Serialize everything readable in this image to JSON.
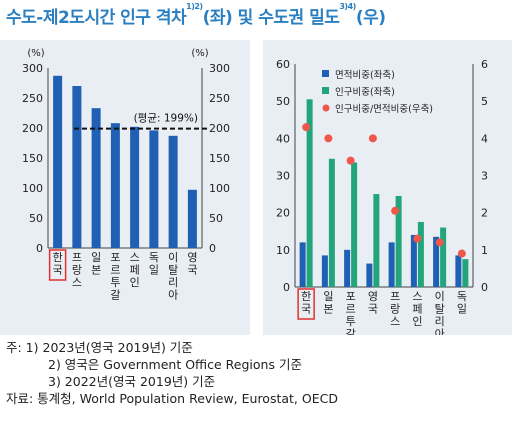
{
  "title": {
    "part1": "수도-제2도시간 인구 격차",
    "sup1": "1)2)",
    "part2": "(좌) 및 수도권 밀도",
    "sup2": "3)4)",
    "part3": "(우)"
  },
  "chart_data": [
    {
      "type": "bar",
      "categories": [
        "한국",
        "프랑스",
        "일본",
        "포르투갈",
        "스페인",
        "독일",
        "이탈리아",
        "영국"
      ],
      "values": [
        287,
        270,
        233,
        208,
        202,
        196,
        187,
        97
      ],
      "highlight_category": "한국",
      "bar_color": "#1f5fb4",
      "ylim": [
        0,
        300
      ],
      "yticks": [
        0,
        50,
        100,
        150,
        200,
        250,
        300
      ],
      "left_unit": "(%)",
      "right_unit": "(%)",
      "reference_line": {
        "value": 199,
        "label": "(평균: 199%)"
      },
      "grid": false
    },
    {
      "type": "bar",
      "categories": [
        "한국",
        "일본",
        "포르투갈",
        "영국",
        "프랑스",
        "스페인",
        "이탈리아",
        "독일"
      ],
      "highlight_category": "한국",
      "series": [
        {
          "name": "면적비중(좌축)",
          "axis": "left",
          "color": "#1f5fb4",
          "values": [
            12,
            8.5,
            10,
            6.3,
            12,
            14,
            13.5,
            8.5
          ]
        },
        {
          "name": "인구비중(좌축)",
          "axis": "left",
          "color": "#22a57a",
          "values": [
            50.5,
            34.5,
            33.5,
            25,
            24.5,
            17.5,
            16,
            7.5
          ]
        },
        {
          "name": "인구비중/면적비중(우축)",
          "axis": "right",
          "type": "scatter",
          "color": "#f0564a",
          "values": [
            4.3,
            4.0,
            3.4,
            4.0,
            2.05,
            1.3,
            1.2,
            0.9
          ]
        }
      ],
      "ylim_left": [
        0,
        60
      ],
      "yticks_left": [
        0,
        10,
        20,
        30,
        40,
        50,
        60
      ],
      "ylim_right": [
        0,
        6
      ],
      "yticks_right": [
        0,
        1,
        2,
        3,
        4,
        5,
        6
      ],
      "legend_position": "top-left",
      "grid": false
    }
  ],
  "notes": [
    "주: 1) 2023년(영국 2019년) 기준",
    "2) 영국은 Government Office Regions 기준",
    "3) 2022년(영국 2019년) 기준",
    "자료: 통계청, World Population Review, Eurostat, OECD"
  ]
}
